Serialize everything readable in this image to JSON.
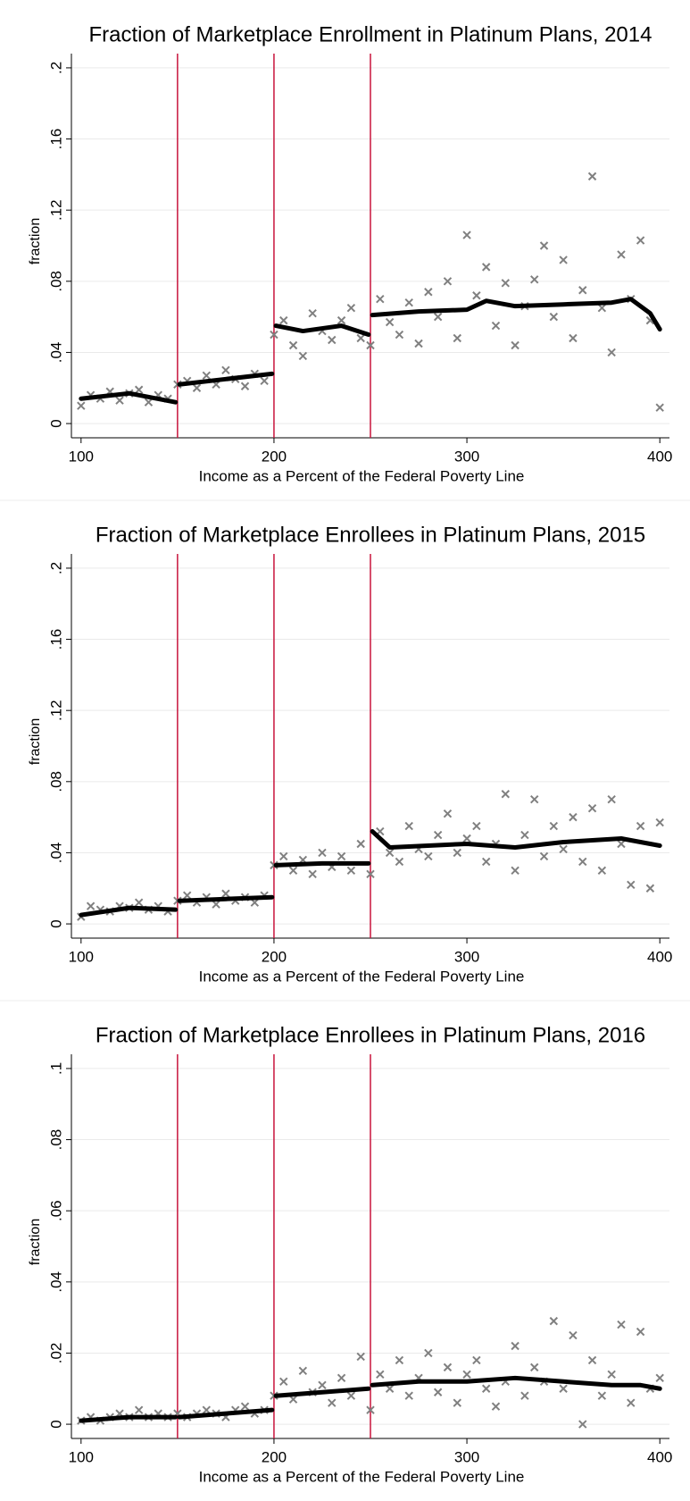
{
  "chart_data": [
    {
      "type": "scatter",
      "title": "Fraction of Marketplace Enrollment in Platinum Plans, 2014",
      "x_label": "Income as a Percent of the Federal Poverty Line",
      "y_label": "fraction",
      "xlim": [
        95,
        405
      ],
      "ylim": [
        -0.008,
        0.208
      ],
      "xticks": [
        100,
        200,
        300,
        400
      ],
      "yticks": [
        0,
        {
          "value": 0.04,
          "label": ".04"
        },
        {
          "value": 0.08,
          "label": ".08"
        },
        {
          "value": 0.12,
          "label": ".12"
        },
        {
          "value": 0.16,
          "label": ".16"
        },
        {
          "value": 0.2,
          "label": ".2"
        }
      ],
      "grid": true,
      "vlines": [
        150,
        200,
        250
      ],
      "vline_color": "#c8143c",
      "series": [
        {
          "type": "scatter",
          "color": "#808080",
          "x": [
            100,
            105,
            110,
            115,
            120,
            125,
            130,
            135,
            140,
            145,
            150,
            155,
            160,
            165,
            170,
            175,
            180,
            185,
            190,
            195,
            200,
            205,
            210,
            215,
            220,
            225,
            230,
            235,
            240,
            245,
            250,
            255,
            260,
            265,
            270,
            275,
            280,
            285,
            290,
            295,
            300,
            305,
            310,
            315,
            320,
            325,
            330,
            335,
            340,
            345,
            350,
            355,
            360,
            365,
            370,
            375,
            380,
            385,
            390,
            395,
            400
          ],
          "values": [
            0.01,
            0.016,
            0.014,
            0.018,
            0.013,
            0.017,
            0.019,
            0.012,
            0.016,
            0.014,
            0.022,
            0.024,
            0.02,
            0.027,
            0.022,
            0.03,
            0.025,
            0.021,
            0.028,
            0.024,
            0.05,
            0.058,
            0.044,
            0.038,
            0.062,
            0.052,
            0.047,
            0.058,
            0.065,
            0.048,
            0.044,
            0.07,
            0.057,
            0.05,
            0.068,
            0.045,
            0.074,
            0.06,
            0.08,
            0.048,
            0.106,
            0.072,
            0.088,
            0.055,
            0.079,
            0.044,
            0.066,
            0.081,
            0.1,
            0.06,
            0.092,
            0.048,
            0.075,
            0.139,
            0.065,
            0.04,
            0.095,
            0.07,
            0.103,
            0.058,
            0.009
          ]
        },
        {
          "type": "line",
          "color": "#000000",
          "x": [
            100,
            125,
            149,
            null,
            151,
            175,
            199,
            null,
            201,
            215,
            235,
            249,
            null,
            251,
            275,
            300,
            310,
            325,
            350,
            375,
            385,
            395,
            400
          ],
          "values": [
            0.014,
            0.017,
            0.012,
            null,
            0.022,
            0.025,
            0.028,
            null,
            0.055,
            0.052,
            0.055,
            0.05,
            null,
            0.061,
            0.063,
            0.064,
            0.069,
            0.066,
            0.067,
            0.068,
            0.07,
            0.062,
            0.053
          ]
        }
      ]
    },
    {
      "type": "scatter",
      "title": "Fraction of Marketplace Enrollees in Platinum Plans, 2015",
      "x_label": "Income as a Percent of the Federal Poverty Line",
      "y_label": "fraction",
      "xlim": [
        95,
        405
      ],
      "ylim": [
        -0.008,
        0.208
      ],
      "xticks": [
        100,
        200,
        300,
        400
      ],
      "yticks": [
        0,
        {
          "value": 0.04,
          "label": ".04"
        },
        {
          "value": 0.08,
          "label": ".08"
        },
        {
          "value": 0.12,
          "label": ".12"
        },
        {
          "value": 0.16,
          "label": ".16"
        },
        {
          "value": 0.2,
          "label": ".2"
        }
      ],
      "grid": true,
      "vlines": [
        150,
        200,
        250
      ],
      "vline_color": "#c8143c",
      "series": [
        {
          "type": "scatter",
          "color": "#808080",
          "x": [
            100,
            105,
            110,
            115,
            120,
            125,
            130,
            135,
            140,
            145,
            150,
            155,
            160,
            165,
            170,
            175,
            180,
            185,
            190,
            195,
            200,
            205,
            210,
            215,
            220,
            225,
            230,
            235,
            240,
            245,
            250,
            255,
            260,
            265,
            270,
            275,
            280,
            285,
            290,
            295,
            300,
            305,
            310,
            315,
            320,
            325,
            330,
            335,
            340,
            345,
            350,
            355,
            360,
            365,
            370,
            375,
            380,
            385,
            390,
            395,
            400
          ],
          "values": [
            0.004,
            0.01,
            0.008,
            0.007,
            0.01,
            0.009,
            0.012,
            0.008,
            0.01,
            0.007,
            0.013,
            0.016,
            0.012,
            0.015,
            0.011,
            0.017,
            0.013,
            0.015,
            0.012,
            0.016,
            0.033,
            0.038,
            0.03,
            0.036,
            0.028,
            0.04,
            0.032,
            0.038,
            0.03,
            0.045,
            0.028,
            0.052,
            0.04,
            0.035,
            0.055,
            0.042,
            0.038,
            0.05,
            0.062,
            0.04,
            0.048,
            0.055,
            0.035,
            0.045,
            0.073,
            0.03,
            0.05,
            0.07,
            0.038,
            0.055,
            0.042,
            0.06,
            0.035,
            0.065,
            0.03,
            0.07,
            0.045,
            0.022,
            0.055,
            0.02,
            0.057
          ]
        },
        {
          "type": "line",
          "color": "#000000",
          "x": [
            100,
            125,
            149,
            null,
            151,
            175,
            199,
            null,
            201,
            225,
            249,
            null,
            251,
            260,
            300,
            325,
            350,
            380,
            400
          ],
          "values": [
            0.005,
            0.009,
            0.008,
            null,
            0.013,
            0.014,
            0.015,
            null,
            0.033,
            0.034,
            0.034,
            null,
            0.052,
            0.043,
            0.045,
            0.043,
            0.046,
            0.048,
            0.044
          ]
        }
      ]
    },
    {
      "type": "scatter",
      "title": "Fraction of Marketplace Enrollees in Platinum Plans, 2016",
      "x_label": "Income as a Percent of the Federal Poverty Line",
      "y_label": "fraction",
      "xlim": [
        95,
        405
      ],
      "ylim": [
        -0.004,
        0.104
      ],
      "xticks": [
        100,
        200,
        300,
        400
      ],
      "yticks": [
        0,
        {
          "value": 0.02,
          "label": ".02"
        },
        {
          "value": 0.04,
          "label": ".04"
        },
        {
          "value": 0.06,
          "label": ".06"
        },
        {
          "value": 0.08,
          "label": ".08"
        },
        {
          "value": 0.1,
          "label": ".1"
        }
      ],
      "grid": true,
      "vlines": [
        150,
        200,
        250
      ],
      "vline_color": "#c8143c",
      "series": [
        {
          "type": "scatter",
          "color": "#808080",
          "x": [
            100,
            105,
            110,
            115,
            120,
            125,
            130,
            135,
            140,
            145,
            150,
            155,
            160,
            165,
            170,
            175,
            180,
            185,
            190,
            195,
            200,
            205,
            210,
            215,
            220,
            225,
            230,
            235,
            240,
            245,
            250,
            255,
            260,
            265,
            270,
            275,
            280,
            285,
            290,
            295,
            300,
            305,
            310,
            315,
            320,
            325,
            330,
            335,
            340,
            345,
            350,
            355,
            360,
            365,
            370,
            375,
            380,
            385,
            390,
            395,
            400
          ],
          "values": [
            0.001,
            0.002,
            0.001,
            0.002,
            0.003,
            0.002,
            0.004,
            0.002,
            0.003,
            0.002,
            0.003,
            0.002,
            0.003,
            0.004,
            0.003,
            0.002,
            0.004,
            0.005,
            0.003,
            0.004,
            0.008,
            0.012,
            0.007,
            0.015,
            0.009,
            0.011,
            0.006,
            0.013,
            0.008,
            0.019,
            0.004,
            0.014,
            0.01,
            0.018,
            0.008,
            0.013,
            0.02,
            0.009,
            0.016,
            0.006,
            0.014,
            0.018,
            0.01,
            0.005,
            0.012,
            0.022,
            0.008,
            0.016,
            0.012,
            0.029,
            0.01,
            0.025,
            0.0,
            0.018,
            0.008,
            0.014,
            0.028,
            0.006,
            0.026,
            0.01,
            0.013
          ]
        },
        {
          "type": "line",
          "color": "#000000",
          "x": [
            100,
            125,
            149,
            null,
            151,
            175,
            199,
            null,
            201,
            225,
            249,
            null,
            251,
            275,
            300,
            325,
            350,
            375,
            390,
            400
          ],
          "values": [
            0.001,
            0.002,
            0.002,
            null,
            0.002,
            0.003,
            0.004,
            null,
            0.008,
            0.009,
            0.01,
            null,
            0.011,
            0.012,
            0.012,
            0.013,
            0.012,
            0.011,
            0.011,
            0.01
          ]
        }
      ]
    }
  ]
}
